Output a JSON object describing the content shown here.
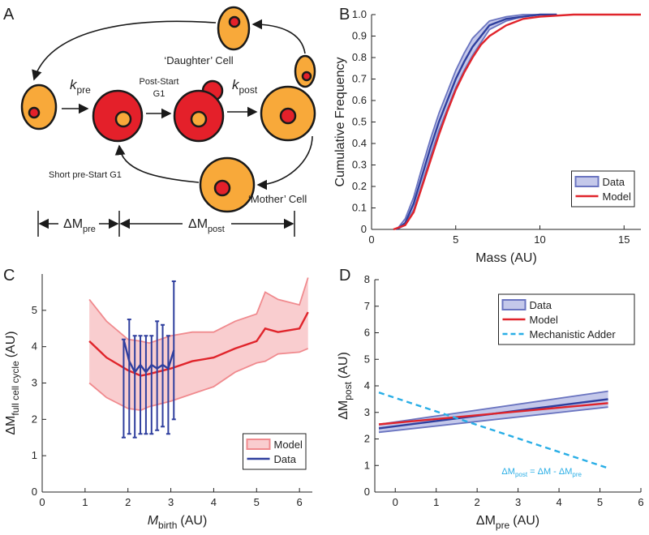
{
  "panels": [
    "A",
    "B",
    "C",
    "D"
  ],
  "diagram": {
    "rate_pre": {
      "main": "k",
      "sub": "pre"
    },
    "post_start": [
      "Post-Start",
      "G1"
    ],
    "rate_post": {
      "main": "k",
      "sub": "post"
    },
    "daughter": "‘Daughter’ Cell",
    "short_pre": "Short pre-Start G1",
    "mother": "‘Mother’ Cell",
    "dm_pre": {
      "main": "ΔM",
      "sub": "pre"
    },
    "dm_post": {
      "main": "ΔM",
      "sub": "post"
    }
  },
  "chart_data": [
    {
      "type": "line",
      "xlabel": "Mass (AU)",
      "ylabel": "Cumulative Frequency",
      "xlim": [
        0,
        16
      ],
      "xticks": [
        0,
        5,
        10,
        15
      ],
      "ylim": [
        0,
        1
      ],
      "yticks": [
        0,
        0.1,
        0.2,
        0.3,
        0.4,
        0.5,
        0.6,
        0.7,
        0.8,
        0.9,
        {
          "value": 1,
          "label": "1.0"
        }
      ],
      "legend": "lower right",
      "series": [
        {
          "name": "Data",
          "color": "#2f3f9e",
          "band": true,
          "band_color": "#c4c8ea",
          "band_edge_color": "#6a74c0",
          "x": [
            1.5,
            2,
            2.5,
            3,
            3.5,
            4,
            4.5,
            5,
            5.5,
            6,
            6.5,
            7,
            8,
            9,
            10,
            11
          ],
          "values": [
            0,
            0.03,
            0.12,
            0.25,
            0.38,
            0.5,
            0.6,
            0.7,
            0.78,
            0.85,
            0.9,
            0.95,
            0.98,
            0.99,
            1,
            1
          ],
          "lower": [
            0,
            0.02,
            0.09,
            0.21,
            0.34,
            0.46,
            0.56,
            0.66,
            0.74,
            0.81,
            0.87,
            0.93,
            0.97,
            0.99,
            1,
            1
          ],
          "upper": [
            0,
            0.05,
            0.15,
            0.29,
            0.42,
            0.54,
            0.64,
            0.74,
            0.82,
            0.89,
            0.93,
            0.97,
            0.99,
            1,
            1,
            1
          ]
        },
        {
          "name": "Model",
          "color": "#e0242b",
          "x": [
            1.3,
            2,
            2.5,
            3,
            3.5,
            4,
            4.5,
            5,
            5.5,
            6,
            6.5,
            7,
            8,
            9,
            10,
            12,
            16
          ],
          "values": [
            0,
            0.02,
            0.08,
            0.2,
            0.32,
            0.44,
            0.55,
            0.65,
            0.73,
            0.8,
            0.86,
            0.9,
            0.95,
            0.98,
            0.99,
            1,
            1
          ]
        }
      ]
    },
    {
      "type": "line",
      "xlabel": {
        "main": "M",
        "sub": "birth",
        "unit": "(AU)"
      },
      "ylabel": {
        "main": "ΔM",
        "sub": "full cell cycle",
        "unit": "(AU)"
      },
      "xlim": [
        0,
        6.3
      ],
      "xticks": [
        0,
        1,
        2,
        3,
        4,
        5,
        6
      ],
      "ylim": [
        0,
        6
      ],
      "yticks": [
        0,
        1,
        2,
        3,
        4,
        5
      ],
      "legend": "lower right",
      "series": [
        {
          "name": "Model",
          "color": "#e0242b",
          "band": true,
          "band_color": "#f9cdcf",
          "band_edge_color": "#f08a8e",
          "x": [
            1.1,
            1.5,
            2,
            2.3,
            2.5,
            3,
            3.5,
            4,
            4.5,
            5,
            5.2,
            5.5,
            6,
            6.2
          ],
          "values": [
            4.15,
            3.7,
            3.35,
            3.2,
            3.25,
            3.4,
            3.6,
            3.7,
            3.95,
            4.15,
            4.5,
            4.4,
            4.5,
            4.95
          ],
          "lower": [
            3.0,
            2.6,
            2.3,
            2.25,
            2.35,
            2.5,
            2.7,
            2.9,
            3.3,
            3.55,
            3.6,
            3.8,
            3.85,
            3.95
          ],
          "upper": [
            5.3,
            4.7,
            4.2,
            4.15,
            4.1,
            4.3,
            4.4,
            4.4,
            4.7,
            4.9,
            5.5,
            5.3,
            5.15,
            5.9
          ]
        },
        {
          "name": "Data",
          "color": "#2f3f9e",
          "error_bars": true,
          "x": [
            1.9,
            2.03,
            2.16,
            2.29,
            2.42,
            2.55,
            2.68,
            2.81,
            2.94,
            3.07
          ],
          "values": [
            4.2,
            3.6,
            3.3,
            3.5,
            3.3,
            3.5,
            3.4,
            3.5,
            3.4,
            3.9
          ],
          "lower": [
            1.5,
            1.6,
            1.5,
            1.6,
            1.6,
            1.6,
            1.7,
            1.8,
            1.6,
            2.0
          ],
          "upper": [
            4.2,
            4.75,
            4.3,
            4.3,
            4.3,
            4.3,
            4.7,
            4.6,
            4.3,
            5.8
          ]
        }
      ]
    },
    {
      "type": "line",
      "xlabel": {
        "main": "ΔM",
        "sub": "pre",
        "unit": "(AU)"
      },
      "ylabel": {
        "main": "ΔM",
        "sub": "post",
        "unit": "(AU)"
      },
      "xlim": [
        -0.5,
        6
      ],
      "xticks": [
        0,
        1,
        2,
        3,
        4,
        5,
        6
      ],
      "ylim": [
        0,
        8
      ],
      "yticks": [
        0,
        1,
        2,
        3,
        4,
        5,
        6,
        7,
        8
      ],
      "legend": "upper right",
      "annotation": {
        "parts": [
          "ΔM",
          "post",
          " = ΔM - ΔM",
          "pre"
        ],
        "color": "#29aee6"
      },
      "series": [
        {
          "name": "Data",
          "color": "#2f3f9e",
          "band": true,
          "band_color": "#c4c8ea",
          "band_edge_color": "#6a74c0",
          "x": [
            -0.4,
            5.2
          ],
          "values": [
            2.4,
            3.5
          ],
          "lower": [
            2.25,
            3.2
          ],
          "upper": [
            2.55,
            3.8
          ]
        },
        {
          "name": "Model",
          "color": "#e0242b",
          "x": [
            -0.4,
            5.2
          ],
          "values": [
            2.55,
            3.35
          ]
        },
        {
          "name": "Mechanistic Adder",
          "color": "#29aee6",
          "dashed": true,
          "x": [
            -0.4,
            5.2
          ],
          "values": [
            3.75,
            0.9
          ]
        }
      ]
    }
  ]
}
